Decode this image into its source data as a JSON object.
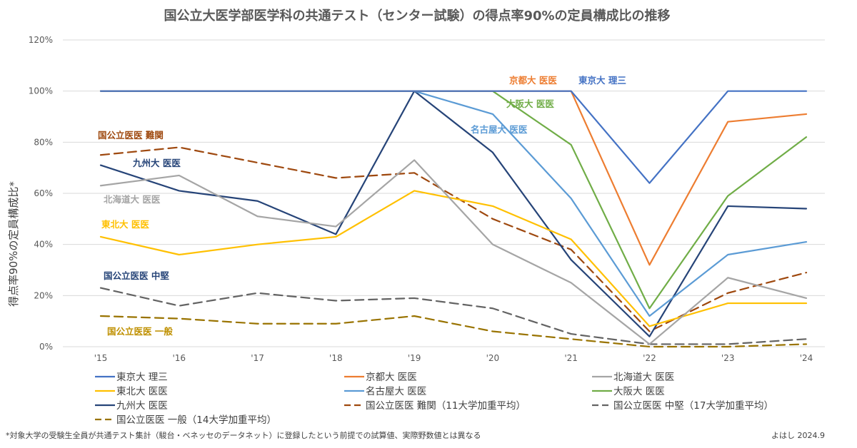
{
  "chart_data": {
    "type": "line",
    "title": "国公立大医学部医学科の共通テスト（センター試験）の得点率90%の定員構成比の推移",
    "ylabel": "得点率90%の定員構成比*",
    "xlabel": "",
    "categories": [
      "'15",
      "'16",
      "'17",
      "'18",
      "'19",
      "'20",
      "'21",
      "'22",
      "'23",
      "'24"
    ],
    "ylim": [
      0,
      120
    ],
    "yticks": [
      0,
      20,
      40,
      60,
      80,
      100,
      120
    ],
    "ytick_labels": [
      "0%",
      "20%",
      "40%",
      "60%",
      "80%",
      "100%",
      "120%"
    ],
    "grid": true,
    "legend_position": "bottom",
    "series": [
      {
        "name": "東京大 理三",
        "label": "東京大 理三",
        "color": "#4472c4",
        "dash": "solid",
        "values": [
          100,
          100,
          100,
          100,
          100,
          100,
          100,
          64,
          100,
          100
        ]
      },
      {
        "name": "京都大 医医",
        "label": "京都大 医医",
        "color": "#ed7d31",
        "dash": "solid",
        "values": [
          100,
          100,
          100,
          100,
          100,
          100,
          100,
          32,
          88,
          91
        ]
      },
      {
        "name": "北海道大 医医",
        "label": "北海道大 医医",
        "color": "#a5a5a5",
        "dash": "solid",
        "values": [
          63,
          67,
          51,
          47,
          73,
          40,
          25,
          1,
          27,
          19
        ]
      },
      {
        "name": "東北大 医医",
        "label": "東北大 医医",
        "color": "#ffc000",
        "dash": "solid",
        "values": [
          43,
          36,
          40,
          43,
          61,
          55,
          42,
          8,
          17,
          17
        ]
      },
      {
        "name": "名古屋大 医医",
        "label": "名古屋大 医医",
        "color": "#5b9bd5",
        "dash": "solid",
        "values": [
          100,
          100,
          100,
          100,
          100,
          91,
          58,
          12,
          36,
          41
        ]
      },
      {
        "name": "大阪大 医医",
        "label": "大阪大 医医",
        "color": "#70ad47",
        "dash": "solid",
        "values": [
          100,
          100,
          100,
          100,
          100,
          100,
          79,
          15,
          59,
          82
        ]
      },
      {
        "name": "九州大 医医",
        "label": "九州大 医医",
        "color": "#264478",
        "dash": "solid",
        "values": [
          71,
          61,
          57,
          44,
          100,
          76,
          34,
          4,
          55,
          54
        ]
      },
      {
        "name": "国公立医医 難関（11大学加重平均）",
        "label": "国公立医医 難関",
        "color": "#9e480e",
        "dash": "dashed",
        "values": [
          75,
          78,
          72,
          66,
          68,
          50,
          38,
          6,
          21,
          29
        ]
      },
      {
        "name": "国公立医医 中堅（17大学加重平均）",
        "label": "国公立医医 中堅",
        "color": "#636363",
        "dash": "dashed",
        "values": [
          23,
          16,
          21,
          18,
          19,
          15,
          5,
          1,
          1,
          3
        ]
      },
      {
        "name": "国公立医医 一般（14大学加重平均）",
        "label": "国公立医医 一般",
        "color": "#997300",
        "dash": "dashed",
        "values": [
          12,
          11,
          9,
          9,
          12,
          6,
          3,
          0,
          0,
          1
        ]
      }
    ],
    "annotations": [
      {
        "text": "京都大 医医",
        "color": "#ed7d31"
      },
      {
        "text": "東京大 理三",
        "color": "#4472c4"
      },
      {
        "text": "大阪大 医医",
        "color": "#70ad47"
      },
      {
        "text": "名古屋大 医医",
        "color": "#5b9bd5"
      },
      {
        "text": "国公立医医 難関",
        "color": "#9e480e"
      },
      {
        "text": "九州大 医医",
        "color": "#264478"
      },
      {
        "text": "北海道大 医医",
        "color": "#a5a5a5"
      },
      {
        "text": "東北大 医医",
        "color": "#ffc000"
      },
      {
        "text": "国公立医医 中堅",
        "color": "#264478"
      },
      {
        "text": "国公立医医 一般",
        "color": "#bf9000"
      }
    ]
  },
  "footnote": "*対象大学の受験生全員が共通テスト集計（駿台・ベネッセのデータネット）に登録したという前提での試算値、実際野数値とは異なる",
  "credit": "よはし 2024.9"
}
